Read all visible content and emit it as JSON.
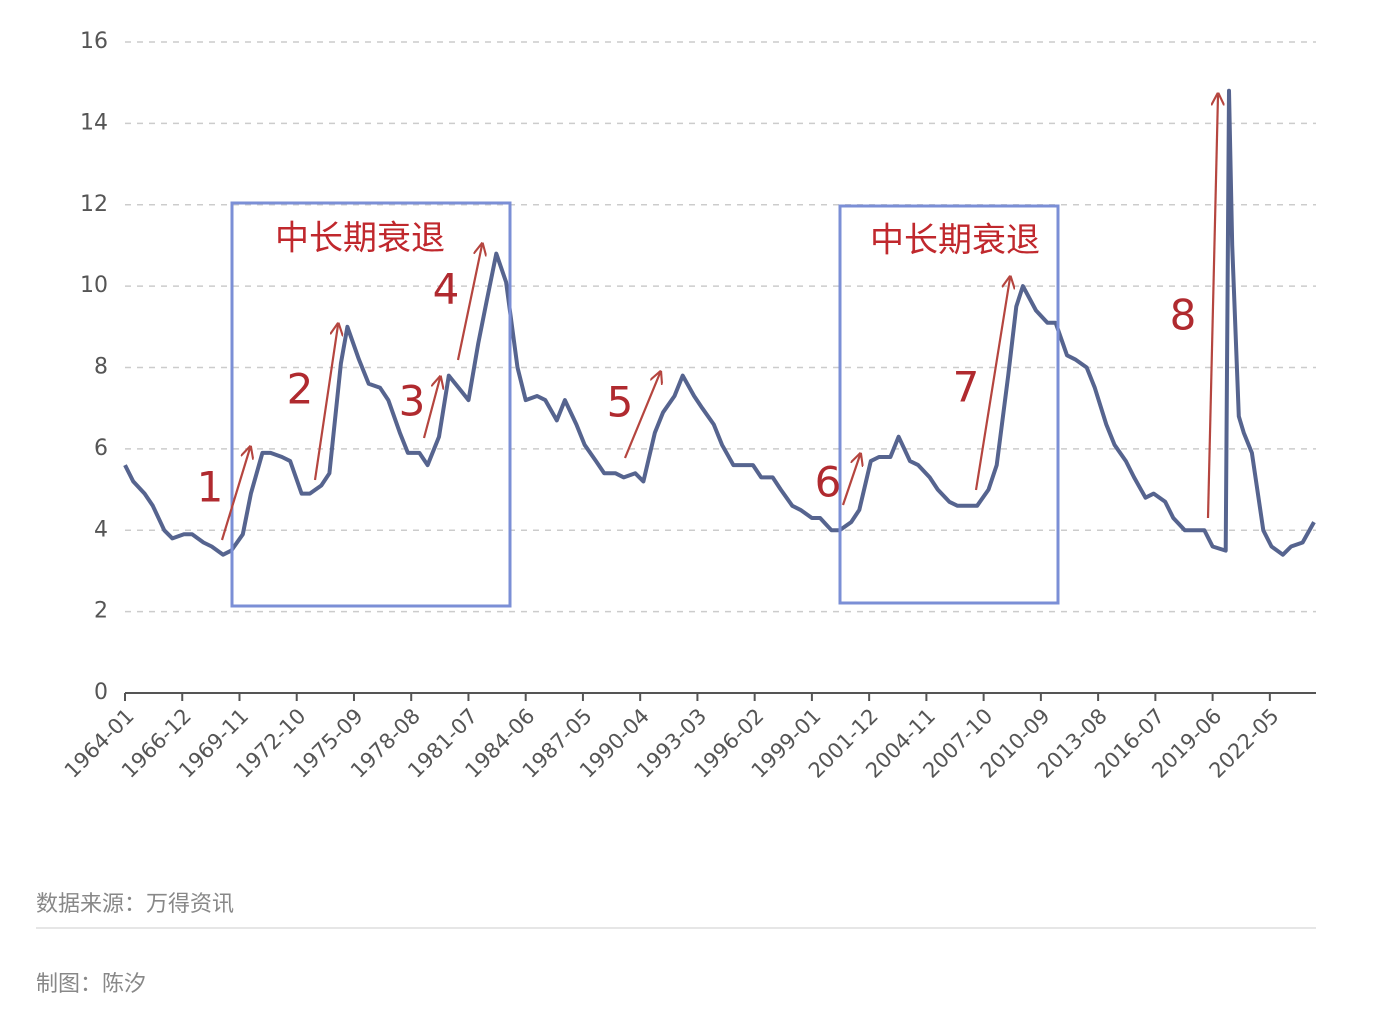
{
  "chart_data": {
    "type": "line",
    "x": [
      "1964-01",
      "1964-06",
      "1965-01",
      "1965-06",
      "1966-01",
      "1966-06",
      "1967-01",
      "1967-06",
      "1968-01",
      "1968-06",
      "1969-01",
      "1969-06",
      "1970-01",
      "1970-06",
      "1971-01",
      "1971-06",
      "1972-01",
      "1972-06",
      "1973-01",
      "1973-06",
      "1974-01",
      "1974-06",
      "1975-01",
      "1975-05",
      "1975-12",
      "1976-06",
      "1977-01",
      "1977-06",
      "1978-01",
      "1978-06",
      "1979-01",
      "1979-06",
      "1980-01",
      "1980-07",
      "1981-01",
      "1981-07",
      "1982-01",
      "1982-06",
      "1982-12",
      "1983-06",
      "1984-01",
      "1984-06",
      "1985-01",
      "1985-06",
      "1986-01",
      "1986-06",
      "1987-01",
      "1987-06",
      "1988-01",
      "1988-06",
      "1989-01",
      "1989-06",
      "1990-01",
      "1990-06",
      "1991-01",
      "1991-06",
      "1992-01",
      "1992-06",
      "1993-01",
      "1993-06",
      "1994-01",
      "1994-06",
      "1995-01",
      "1995-06",
      "1996-01",
      "1996-06",
      "1997-01",
      "1997-06",
      "1998-01",
      "1998-06",
      "1999-01",
      "1999-06",
      "2000-01",
      "2000-06",
      "2001-01",
      "2001-06",
      "2002-01",
      "2002-06",
      "2003-01",
      "2003-06",
      "2004-01",
      "2004-06",
      "2005-01",
      "2005-06",
      "2006-01",
      "2006-06",
      "2007-01",
      "2007-06",
      "2008-01",
      "2008-06",
      "2009-01",
      "2009-06",
      "2009-10",
      "2010-06",
      "2011-01",
      "2011-06",
      "2012-01",
      "2012-06",
      "2013-01",
      "2013-06",
      "2014-01",
      "2014-06",
      "2015-01",
      "2015-06",
      "2016-01",
      "2016-06",
      "2017-01",
      "2017-06",
      "2018-01",
      "2018-06",
      "2019-01",
      "2019-06",
      "2020-02",
      "2020-04",
      "2020-06",
      "2020-10",
      "2021-01",
      "2021-06",
      "2022-01",
      "2022-06",
      "2023-01",
      "2023-06",
      "2024-01",
      "2024-08"
    ],
    "series": [
      {
        "color": "#56648f",
        "values": [
          5.6,
          5.2,
          4.9,
          4.6,
          4.0,
          3.8,
          3.9,
          3.9,
          3.7,
          3.6,
          3.4,
          3.5,
          3.9,
          4.9,
          5.9,
          5.9,
          5.8,
          5.7,
          4.9,
          4.9,
          5.1,
          5.4,
          8.1,
          9.0,
          8.2,
          7.6,
          7.5,
          7.2,
          6.4,
          5.9,
          5.9,
          5.6,
          6.3,
          7.8,
          7.5,
          7.2,
          8.6,
          9.6,
          10.8,
          10.1,
          8.0,
          7.2,
          7.3,
          7.2,
          6.7,
          7.2,
          6.6,
          6.1,
          5.7,
          5.4,
          5.4,
          5.3,
          5.4,
          5.2,
          6.4,
          6.9,
          7.3,
          7.8,
          7.3,
          7.0,
          6.6,
          6.1,
          5.6,
          5.6,
          5.6,
          5.3,
          5.3,
          5.0,
          4.6,
          4.5,
          4.3,
          4.3,
          4.0,
          4.0,
          4.2,
          4.5,
          5.7,
          5.8,
          5.8,
          6.3,
          5.7,
          5.6,
          5.3,
          5.0,
          4.7,
          4.6,
          4.6,
          4.6,
          5.0,
          5.6,
          7.8,
          9.5,
          10.0,
          9.4,
          9.1,
          9.1,
          8.3,
          8.2,
          8.0,
          7.5,
          6.6,
          6.1,
          5.7,
          5.3,
          4.8,
          4.9,
          4.7,
          4.3,
          4.0,
          4.0,
          4.0,
          3.6,
          3.5,
          14.8,
          11.0,
          6.8,
          6.4,
          5.9,
          4.0,
          3.6,
          3.4,
          3.6,
          3.7,
          4.2
        ]
      }
    ],
    "xlim": [
      "1964-01",
      "2024-08"
    ],
    "xticks": [
      "1964-01",
      "1966-12",
      "1969-11",
      "1972-10",
      "1975-09",
      "1978-08",
      "1981-07",
      "1984-06",
      "1987-05",
      "1990-04",
      "1993-03",
      "1996-02",
      "1999-01",
      "2001-12",
      "2004-11",
      "2007-10",
      "2010-09",
      "2013-08",
      "2016-07",
      "2019-06",
      "2022-05"
    ],
    "ylim": [
      0,
      16
    ],
    "yticks": [
      0,
      2,
      4,
      6,
      8,
      10,
      12,
      14,
      16
    ],
    "grid": true,
    "box_labels": [
      "中长期衰退",
      "中长期衰退"
    ],
    "arrow_labels": [
      "1",
      "2",
      "3",
      "4",
      "5",
      "6",
      "7",
      "8"
    ],
    "source": "数据来源：万得资讯",
    "credit": "制图：陈汐"
  }
}
